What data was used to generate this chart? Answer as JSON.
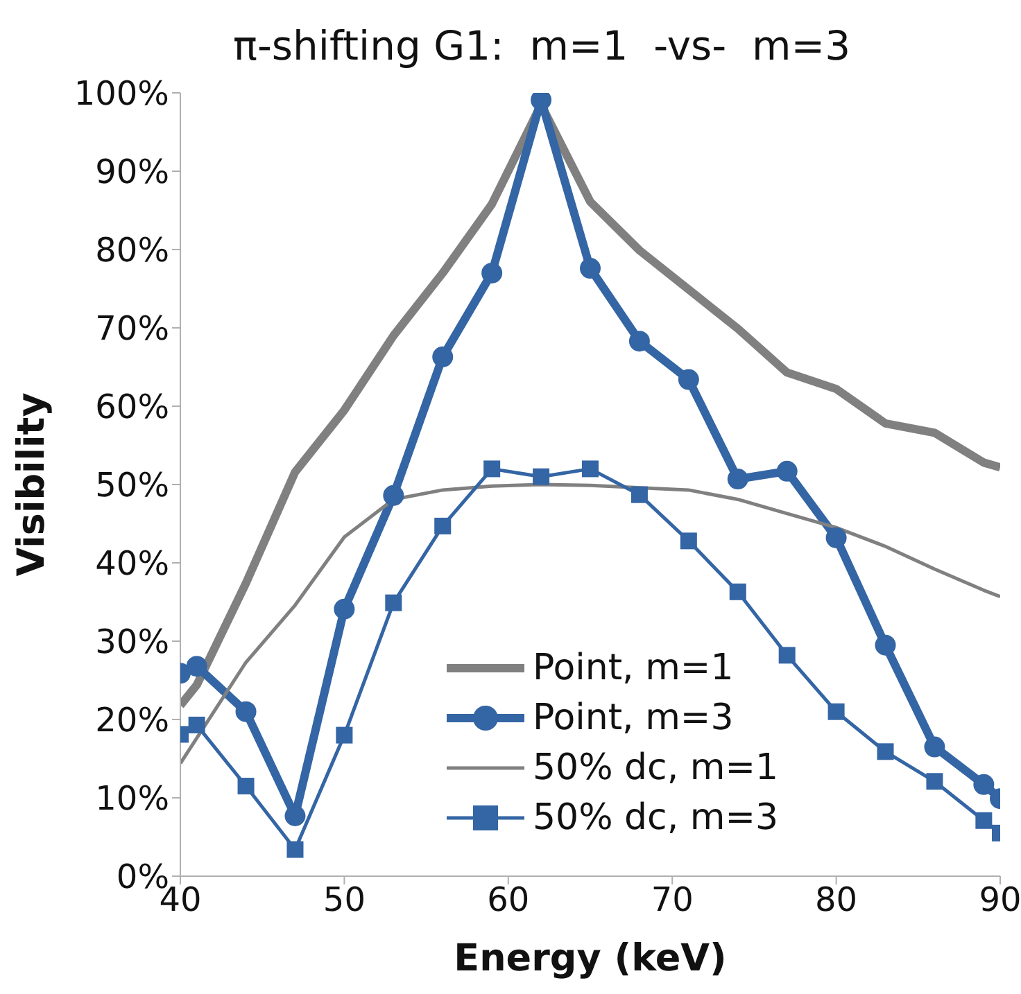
{
  "chart_data": {
    "type": "line",
    "title": "π-shifting G1:  m=1  -vs-  m=3",
    "xlabel": "Energy (keV)",
    "ylabel": "Visibility",
    "xlim": [
      40,
      90
    ],
    "xticks": [
      40,
      50,
      60,
      70,
      80,
      90
    ],
    "ylim": [
      0,
      100
    ],
    "yticks": [
      {
        "value": 0,
        "label": "0%"
      },
      {
        "value": 10,
        "label": "10%"
      },
      {
        "value": 20,
        "label": "20%"
      },
      {
        "value": 30,
        "label": "30%"
      },
      {
        "value": 40,
        "label": "40%"
      },
      {
        "value": 50,
        "label": "50%"
      },
      {
        "value": 60,
        "label": "60%"
      },
      {
        "value": 70,
        "label": "70%"
      },
      {
        "value": 80,
        "label": "80%"
      },
      {
        "value": 90,
        "label": "90%"
      },
      {
        "value": 100,
        "label": "100%"
      }
    ],
    "grid": false,
    "legend": "bottom right",
    "series": [
      {
        "name": "Point, m=1",
        "color": "#808080",
        "marker": "none",
        "x": [
          40,
          41,
          44,
          47,
          50,
          53,
          56,
          59,
          62,
          65,
          68,
          71,
          74,
          77,
          80,
          83,
          86,
          89,
          90
        ],
        "values": [
          21.8,
          24.4,
          37.4,
          51.6,
          59.5,
          69.0,
          77.0,
          85.8,
          98.5,
          86.1,
          79.9,
          74.9,
          69.9,
          64.3,
          62.2,
          57.8,
          56.6,
          52.8,
          52.2
        ]
      },
      {
        "name": "Point, m=3",
        "color": "#3465a4",
        "marker": "circle",
        "x": [
          40,
          41,
          44,
          47,
          50,
          53,
          56,
          59,
          62,
          65,
          68,
          71,
          74,
          77,
          80,
          83,
          86,
          89,
          90
        ],
        "values": [
          25.9,
          26.8,
          21.0,
          7.7,
          34.1,
          48.6,
          66.3,
          77.0,
          99.1,
          77.6,
          68.3,
          63.4,
          50.7,
          51.7,
          43.2,
          29.5,
          16.5,
          11.7,
          9.9
        ]
      },
      {
        "name": "50% dc, m=1",
        "color": "#808080",
        "marker": "none",
        "x": [
          40,
          44,
          47,
          50,
          53,
          56,
          59,
          62,
          65,
          71,
          74,
          77,
          80,
          83,
          86,
          89,
          90
        ],
        "values": [
          14.4,
          27.3,
          34.6,
          43.3,
          48.1,
          49.3,
          49.8,
          50.0,
          49.9,
          49.3,
          48.1,
          46.3,
          44.5,
          42.1,
          39.2,
          36.5,
          35.7
        ]
      },
      {
        "name": "50% dc, m=3",
        "color": "#3465a4",
        "marker": "square",
        "x": [
          40,
          41,
          44,
          47,
          50,
          53,
          56,
          59,
          62,
          65,
          68,
          71,
          74,
          77,
          80,
          83,
          86,
          89,
          90
        ],
        "values": [
          18.1,
          19.3,
          11.5,
          3.4,
          18.0,
          34.9,
          44.7,
          52.0,
          51.0,
          52.0,
          48.7,
          42.8,
          36.3,
          28.2,
          21.0,
          15.9,
          12.1,
          7.1,
          5.5
        ]
      }
    ]
  }
}
